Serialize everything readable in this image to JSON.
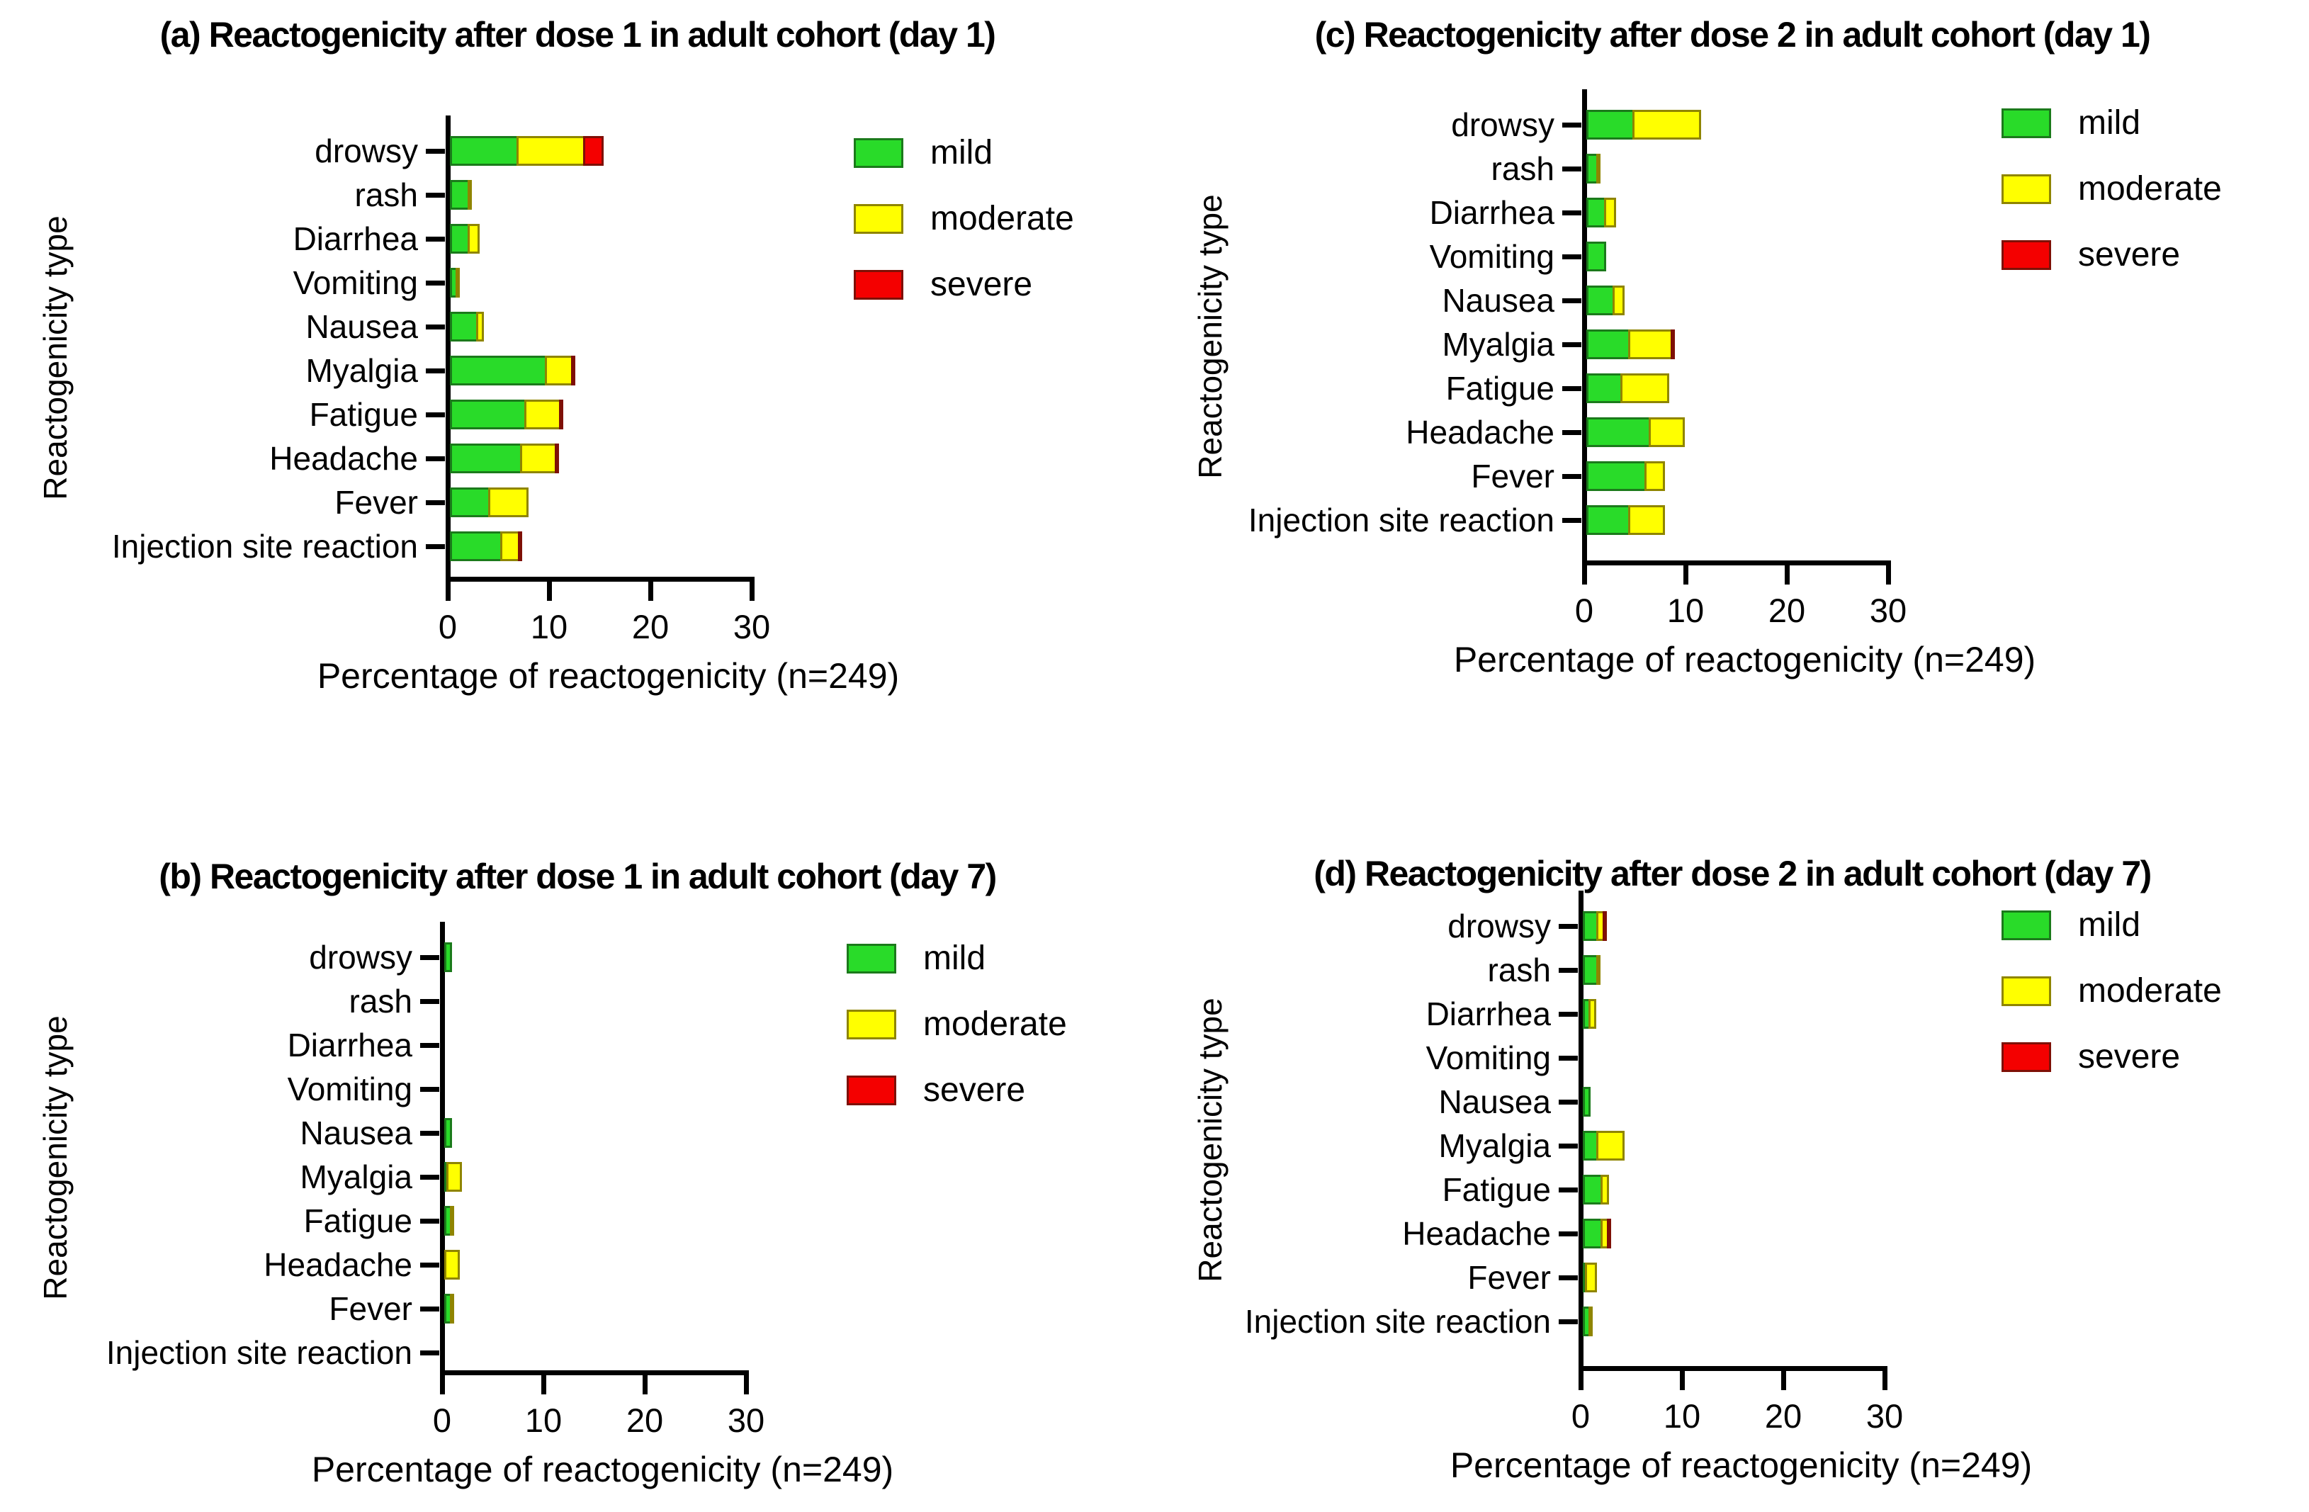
{
  "axis": {
    "x_label": "Percentage of reactogenicity (n=249)",
    "y_label": "Reactogenicity type",
    "x_ticks": [
      0,
      10,
      20,
      30
    ],
    "x_max": 30
  },
  "legend": {
    "items": [
      {
        "name": "mild",
        "label": "mild",
        "fill": "#29DB29",
        "border": "#1B7A1B"
      },
      {
        "name": "moderate",
        "label": "moderate",
        "fill": "#FFFF00",
        "border": "#8F8500"
      },
      {
        "name": "severe",
        "label": "severe",
        "fill": "#F40000",
        "border": "#7E1006"
      }
    ]
  },
  "chart_data": [
    {
      "type": "bar",
      "orientation": "horizontal-stacked",
      "panel": "a",
      "title": "(a) Reactogenicity after dose 1 in adult cohort (day 1)",
      "xlabel": "Percentage of reactogenicity (n=249)",
      "ylabel": "Reactogenicity type",
      "xlim": [
        0,
        30
      ],
      "xticks": [
        0,
        10,
        20,
        30
      ],
      "legend_position": "right",
      "categories": [
        "drowsy",
        "rash",
        "Diarrhea",
        "Vomiting",
        "Nausea",
        "Myalgia",
        "Fatigue",
        "Headache",
        "Fever",
        "Injection site reaction"
      ],
      "series": [
        {
          "name": "mild",
          "values": [
            6.8,
            2.0,
            2.0,
            0.8,
            2.8,
            9.6,
            7.6,
            7.2,
            4.0,
            5.2
          ]
        },
        {
          "name": "moderate",
          "values": [
            6.8,
            0.4,
            1.2,
            0.4,
            0.8,
            2.8,
            3.6,
            3.6,
            4.0,
            2.0
          ]
        },
        {
          "name": "severe",
          "values": [
            2.0,
            0,
            0,
            0,
            0,
            0.4,
            0.4,
            0.4,
            0,
            0.4
          ]
        }
      ]
    },
    {
      "type": "bar",
      "orientation": "horizontal-stacked",
      "panel": "b",
      "title": "(b) Reactogenicity after dose 1 in adult cohort (day 7)",
      "xlabel": "Percentage of reactogenicity (n=249)",
      "ylabel": "Reactogenicity type",
      "xlim": [
        0,
        30
      ],
      "xticks": [
        0,
        10,
        20,
        30
      ],
      "legend_position": "right",
      "categories": [
        "drowsy",
        "rash",
        "Diarrhea",
        "Vomiting",
        "Nausea",
        "Myalgia",
        "Fatigue",
        "Headache",
        "Fever",
        "Injection site reaction"
      ],
      "series": [
        {
          "name": "mild",
          "values": [
            0.8,
            0,
            0,
            0,
            0.8,
            0.4,
            0.8,
            0,
            0.8,
            0
          ]
        },
        {
          "name": "moderate",
          "values": [
            0,
            0,
            0,
            0,
            0,
            1.6,
            0.4,
            1.6,
            0.4,
            0
          ]
        },
        {
          "name": "severe",
          "values": [
            0,
            0,
            0,
            0,
            0,
            0,
            0,
            0,
            0,
            0
          ]
        }
      ]
    },
    {
      "type": "bar",
      "orientation": "horizontal-stacked",
      "panel": "c",
      "title": "(c) Reactogenicity after dose 2 in adult cohort (day 1)",
      "xlabel": "Percentage of reactogenicity (n=249)",
      "ylabel": "Reactogenicity type",
      "xlim": [
        0,
        30
      ],
      "xticks": [
        0,
        10,
        20,
        30
      ],
      "legend_position": "right",
      "categories": [
        "drowsy",
        "rash",
        "Diarrhea",
        "Vomiting",
        "Nausea",
        "Myalgia",
        "Fatigue",
        "Headache",
        "Fever",
        "Injection site reaction"
      ],
      "series": [
        {
          "name": "mild",
          "values": [
            4.8,
            1.2,
            2.0,
            2.0,
            2.8,
            4.4,
            3.6,
            6.4,
            6.0,
            4.4
          ]
        },
        {
          "name": "moderate",
          "values": [
            6.8,
            0.4,
            1.2,
            0,
            1.2,
            4.4,
            4.8,
            3.6,
            2.0,
            3.6
          ]
        },
        {
          "name": "severe",
          "values": [
            0,
            0,
            0,
            0,
            0,
            0.4,
            0,
            0,
            0,
            0
          ]
        }
      ]
    },
    {
      "type": "bar",
      "orientation": "horizontal-stacked",
      "panel": "d",
      "title": "(d) Reactogenicity after dose 2 in adult cohort (day 7)",
      "xlabel": "Percentage of reactogenicity (n=249)",
      "ylabel": "Reactogenicity type",
      "xlim": [
        0,
        30
      ],
      "xticks": [
        0,
        10,
        20,
        30
      ],
      "legend_position": "right",
      "categories": [
        "drowsy",
        "rash",
        "Diarrhea",
        "Vomiting",
        "Nausea",
        "Myalgia",
        "Fatigue",
        "Headache",
        "Fever",
        "Injection site reaction"
      ],
      "series": [
        {
          "name": "mild",
          "values": [
            1.6,
            1.6,
            0.8,
            0,
            0.8,
            1.6,
            2.0,
            2.0,
            0.4,
            0.8
          ]
        },
        {
          "name": "moderate",
          "values": [
            0.8,
            0.4,
            0.8,
            0,
            0,
            2.8,
            0.8,
            0.8,
            1.2,
            0.4
          ]
        },
        {
          "name": "severe",
          "values": [
            0.4,
            0,
            0,
            0,
            0,
            0,
            0,
            0.4,
            0,
            0
          ]
        }
      ]
    }
  ]
}
